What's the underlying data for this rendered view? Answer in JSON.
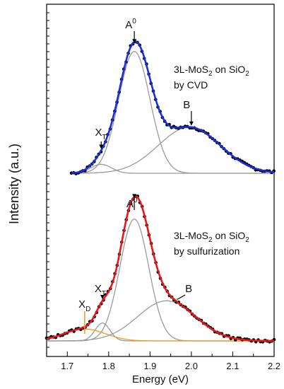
{
  "chart_data": [
    {
      "type": "line",
      "panel": "top",
      "annotation": [
        "3L-MoS",
        "2",
        " on SiO",
        "2",
        "by CVD"
      ],
      "peaks": {
        "A0": {
          "label": "A",
          "sup": "0",
          "x": 1.862
        },
        "XT": {
          "label": "X",
          "sub": "T",
          "x": 1.782
        },
        "B": {
          "label": "B",
          "x": 2.0
        }
      },
      "components": [
        {
          "name": "A0",
          "center": 1.862,
          "amplitude": 0.82,
          "sigma": 0.038
        },
        {
          "name": "XT",
          "center": 1.782,
          "amplitude": 0.06,
          "sigma": 0.025
        },
        {
          "name": "B",
          "center": 1.995,
          "amplitude": 0.31,
          "sigma": 0.075
        }
      ],
      "x_range": [
        1.71,
        2.2
      ],
      "colors": {
        "data": "#000000",
        "fit": "#1a2fd6",
        "components": "#9a9a9a"
      }
    },
    {
      "type": "line",
      "panel": "bottom",
      "annotation": [
        "3L-MoS",
        "2",
        " on SiO",
        "2",
        "by sulfurization"
      ],
      "peaks": {
        "A0": {
          "label": "A",
          "sup": "0",
          "x": 1.862
        },
        "XT": {
          "label": "X",
          "sub": "T",
          "x": 1.785
        },
        "XD": {
          "label": "X",
          "sub": "D",
          "x": 1.742
        },
        "B": {
          "label": "B",
          "x": 1.965
        }
      },
      "components": [
        {
          "name": "A0",
          "center": 1.862,
          "amplitude": 0.82,
          "sigma": 0.035
        },
        {
          "name": "XT",
          "center": 1.785,
          "amplitude": 0.12,
          "sigma": 0.018
        },
        {
          "name": "XD",
          "center": 1.742,
          "amplitude": 0.08,
          "sigma": 0.05
        },
        {
          "name": "B",
          "center": 1.94,
          "amplitude": 0.27,
          "sigma": 0.07
        }
      ],
      "x_range": [
        1.65,
        2.2
      ],
      "colors": {
        "data": "#000000",
        "fit": "#e3171c",
        "components": "#9a9a9a",
        "defect": "#f39a1b"
      }
    }
  ],
  "axes": {
    "xlabel": "Energy (eV)",
    "ylabel": "Intensity (a.u.)",
    "xlim": [
      1.65,
      2.2
    ],
    "xticks": [
      "1.7",
      "1.8",
      "1.9",
      "2.0",
      "2.1",
      "2.2"
    ],
    "xtick_values": [
      1.7,
      1.8,
      1.9,
      2.0,
      2.1,
      2.2
    ]
  }
}
